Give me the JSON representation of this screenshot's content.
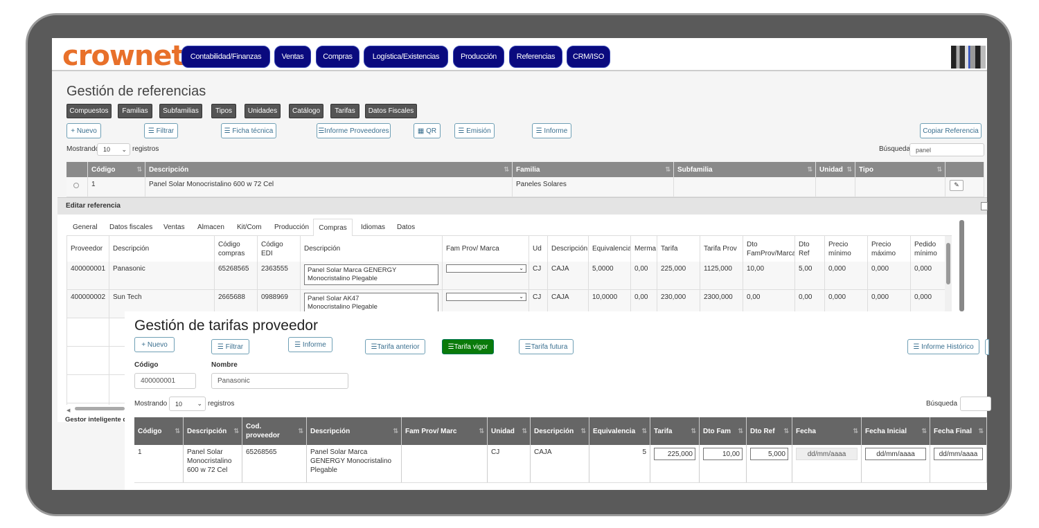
{
  "logo_text": "crownet",
  "nav": {
    "items": [
      "Contabilidad/Finanzas",
      "Ventas",
      "Compras",
      "Logística/Existencias",
      "Producción",
      "Referencias",
      "CRM/ISO"
    ]
  },
  "refs": {
    "title": "Gestión de referencias",
    "category_buttons": [
      "Compuestos",
      "Familias",
      "Subfamilias",
      "Tipos",
      "Unidades",
      "Catálogo",
      "Tarifas",
      "Datos Fiscales"
    ],
    "actions": [
      "+ Nuevo",
      "☰ Filtrar",
      "☰ Ficha técnica",
      "☰Informe Proveedores",
      "▦ QR",
      "☰ Emisión",
      "☰ Informe"
    ],
    "copy_button": "Copiar Referencia",
    "show_label": "Mostrando",
    "show_value": "10",
    "records_label": "registros",
    "search_label": "Búsqueda",
    "search_value": "panel",
    "columns": [
      "",
      "Código",
      "Descripción",
      "Familia",
      "Subfamilia",
      "Unidad",
      "Tipo",
      ""
    ],
    "rows": [
      [
        "",
        "1",
        "Panel Solar Monocristalino 600 w 72 Cel",
        "Paneles Solares",
        "",
        "",
        "",
        ""
      ]
    ]
  },
  "edit": {
    "title": "Editar referencia",
    "tabs": [
      "General",
      "Datos fiscales",
      "Ventas",
      "Almacen",
      "Kit/Com",
      "Producción",
      "Compras",
      "Idiomas",
      "Datos"
    ],
    "active_tab": "Compras",
    "columns": [
      "Proveedor",
      "Descripción",
      "Código\ncompras",
      "Código EDI",
      "Descripción",
      "Fam Prov/ Marca",
      "Ud",
      "Descripción",
      "Equivalencia",
      "Merma",
      "Tarifa",
      "Tarifa Prov",
      "Dto\nFamProv/Marca",
      "Dto Ref",
      "Precio\nmínimo",
      "Precio\nmáximo",
      "Pedido\nmínimo"
    ],
    "rows": [
      [
        "400000001",
        "Panasonic",
        "65268565",
        "2363555",
        "Panel Solar Marca GENERGY\nMonocristalino Plegable",
        "",
        "CJ",
        "CAJA",
        "5,0000",
        "0,00",
        "225,000",
        "1125,000",
        "10,00",
        "5,00",
        "0,000",
        "0,000",
        "0,000"
      ],
      [
        "400000002",
        "Sun Tech",
        "2665688",
        "0988969",
        "Panel Solar  AK47\nMonocristalino Plegable",
        "",
        "CJ",
        "CAJA",
        "10,0000",
        "0,00",
        "230,000",
        "2300,000",
        "0,00",
        "0,00",
        "0,000",
        "0,000",
        "0,000"
      ]
    ],
    "footer_text": "Gestor inteligente de"
  },
  "tarifas": {
    "title": "Gestión de tarifas proveedor",
    "buttons": [
      "+ Nuevo",
      "☰ Filtrar",
      "☰ Informe",
      "☰Tarifa anterior",
      "☰Tarifa vigor",
      "☰Tarifa futura",
      "☰ Informe Histórico"
    ],
    "active_button": "☰Tarifa vigor",
    "codigo_label": "Código",
    "codigo_value": "400000001",
    "nombre_label": "Nombre",
    "nombre_value": "Panasonic",
    "show_label": "Mostrando",
    "show_value": "10",
    "records_label": "registros",
    "search_label": "Búsqueda",
    "search_value": "",
    "columns": [
      "Código",
      "Descripción",
      "Cod.\nproveedor",
      "Descripción",
      "Fam Prov/ Marc",
      "Unidad",
      "Descripción",
      "Equivalencia",
      "Tarifa",
      "Dto Fam",
      "Dto Ref",
      "Fecha",
      "Fecha Inicial",
      "Fecha Final"
    ],
    "rows": [
      [
        "1",
        "Panel Solar\nMonocristalino\n600 w 72 Cel",
        "65268565",
        "Panel Solar Marca\nGENERGY Monocristalino\nPlegable",
        "",
        "CJ",
        "CAJA",
        "5",
        "225,000",
        "10,00",
        "5,000",
        "dd/mm/aaaa",
        "dd/mm/aaaa",
        "dd/mm/aaaa"
      ]
    ]
  },
  "colors": {
    "nav": "#0a0a7e",
    "logo": "#e8702a",
    "active_green": "#0a7a0a",
    "header_dark": "#666666"
  }
}
